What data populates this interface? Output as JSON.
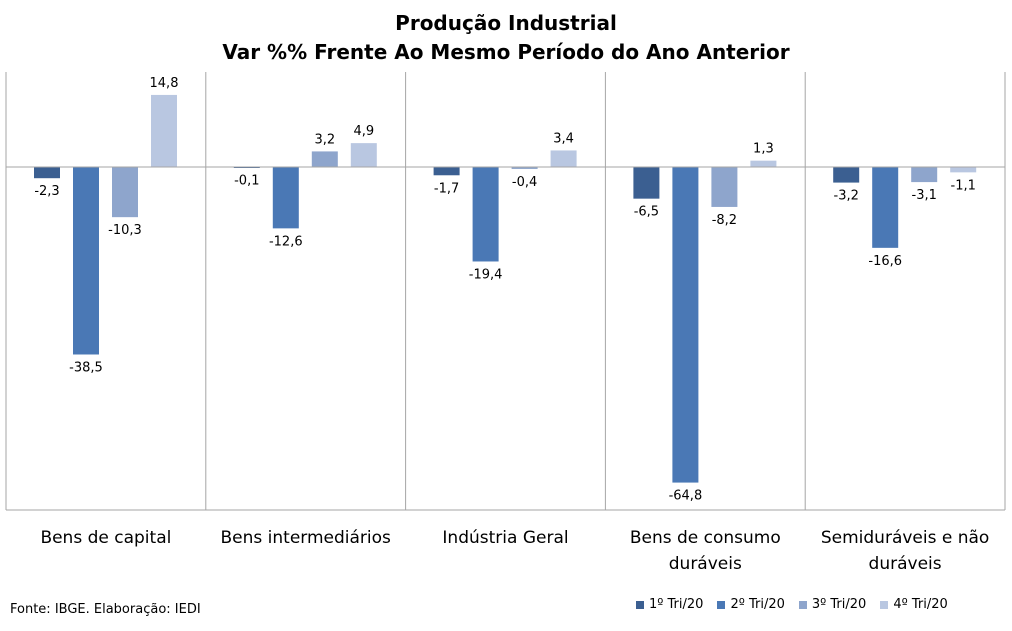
{
  "chart_data": {
    "type": "bar",
    "title": "Produção Industrial",
    "subtitle": "Var %% Frente Ao Mesmo Período do Ano Anterior",
    "categories": [
      [
        "Bens de capital"
      ],
      [
        "Bens intermediários"
      ],
      [
        "Indústria Geral"
      ],
      [
        "Bens de consumo",
        "duráveis"
      ],
      [
        "Semiduráveis e não",
        "duráveis"
      ]
    ],
    "series": [
      {
        "name": "1º Tri/20",
        "color": "#3b5f91",
        "values": [
          -2.3,
          -0.1,
          -1.7,
          -6.5,
          -3.2
        ],
        "labels": [
          "-2,3",
          "-0,1",
          "-1,7",
          "-6,5",
          "-3,2"
        ]
      },
      {
        "name": "2º Tri/20",
        "color": "#4a78b5",
        "values": [
          -38.5,
          -12.6,
          -19.4,
          -64.8,
          -16.6
        ],
        "labels": [
          "-38,5",
          "-12,6",
          "-19,4",
          "-64,8",
          "-16,6"
        ]
      },
      {
        "name": "3º Tri/20",
        "color": "#8ea5cc",
        "values": [
          -10.3,
          3.2,
          -0.4,
          -8.2,
          -3.1
        ],
        "labels": [
          "-10,3",
          "3,2",
          "-0,4",
          "-8,2",
          "-3,1"
        ]
      },
      {
        "name": "4º Tri/20",
        "color": "#b9c7e1",
        "values": [
          14.8,
          4.9,
          3.4,
          1.3,
          -1.1
        ],
        "labels": [
          "14,8",
          "4,9",
          "3,4",
          "1,3",
          "-1,1"
        ]
      }
    ],
    "ylim": [
      -70,
      20
    ],
    "grid": false,
    "legend_position": "bottom-right"
  },
  "footer": "Fonte: IBGE. Elaboração: IEDI"
}
